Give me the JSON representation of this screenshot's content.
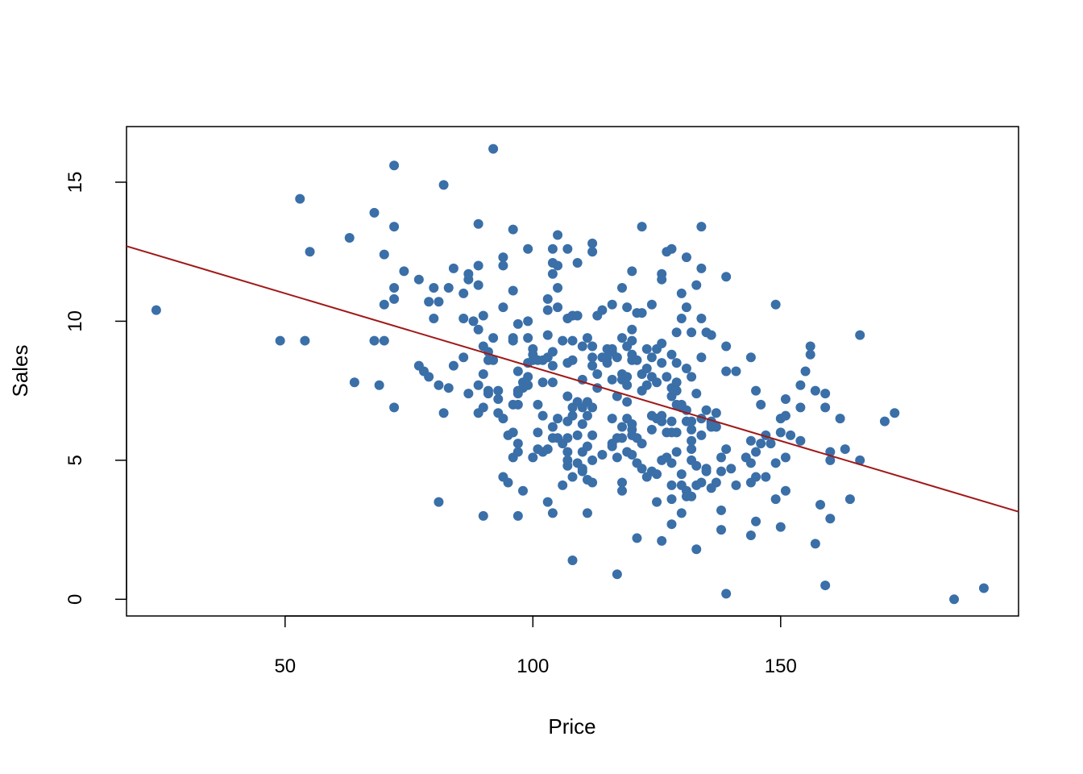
{
  "chart_data": {
    "type": "scatter",
    "title": "",
    "xlabel": "Price",
    "ylabel": "Sales",
    "xlim": [
      18,
      198
    ],
    "ylim": [
      -0.6,
      17.0
    ],
    "xticks": [
      50,
      100,
      150
    ],
    "yticks": [
      0,
      5,
      10,
      15
    ],
    "grid": false,
    "point_color": "#3a6fa8",
    "regression_line": {
      "color": "#a01818",
      "start": {
        "x": 18,
        "y": 12.7
      },
      "end": {
        "x": 198,
        "y": 3.15
      }
    },
    "points": [
      [
        24,
        10.4
      ],
      [
        49,
        9.3
      ],
      [
        53,
        14.4
      ],
      [
        54,
        9.3
      ],
      [
        55,
        12.5
      ],
      [
        63,
        13.0
      ],
      [
        64,
        7.8
      ],
      [
        68,
        13.9
      ],
      [
        68,
        9.3
      ],
      [
        69,
        7.7
      ],
      [
        70,
        9.3
      ],
      [
        70,
        12.4
      ],
      [
        70,
        10.6
      ],
      [
        72,
        15.6
      ],
      [
        72,
        13.4
      ],
      [
        72,
        11.2
      ],
      [
        72,
        10.8
      ],
      [
        72,
        6.9
      ],
      [
        74,
        11.8
      ],
      [
        77,
        11.5
      ],
      [
        77,
        8.4
      ],
      [
        78,
        8.2
      ],
      [
        79,
        8.0
      ],
      [
        79,
        10.7
      ],
      [
        80,
        11.2
      ],
      [
        80,
        10.1
      ],
      [
        81,
        10.7
      ],
      [
        81,
        7.7
      ],
      [
        81,
        3.5
      ],
      [
        82,
        14.9
      ],
      [
        82,
        6.7
      ],
      [
        83,
        11.2
      ],
      [
        83,
        7.6
      ],
      [
        84,
        11.9
      ],
      [
        84,
        8.4
      ],
      [
        86,
        10.1
      ],
      [
        86,
        11.0
      ],
      [
        86,
        8.7
      ],
      [
        87,
        11.5
      ],
      [
        87,
        11.7
      ],
      [
        87,
        7.4
      ],
      [
        88,
        10.0
      ],
      [
        89,
        13.5
      ],
      [
        89,
        12.0
      ],
      [
        89,
        11.3
      ],
      [
        89,
        9.7
      ],
      [
        89,
        7.7
      ],
      [
        89,
        6.7
      ],
      [
        90,
        10.2
      ],
      [
        90,
        9.1
      ],
      [
        90,
        8.1
      ],
      [
        90,
        6.9
      ],
      [
        90,
        3.0
      ],
      [
        91,
        8.9
      ],
      [
        91,
        8.6
      ],
      [
        91,
        7.5
      ],
      [
        91,
        7.4
      ],
      [
        92,
        16.2
      ],
      [
        92,
        9.4
      ],
      [
        92,
        8.6
      ],
      [
        93,
        7.5
      ],
      [
        93,
        7.2
      ],
      [
        93,
        6.7
      ],
      [
        94,
        12.3
      ],
      [
        94,
        12.0
      ],
      [
        94,
        10.5
      ],
      [
        94,
        6.5
      ],
      [
        94,
        4.4
      ],
      [
        95,
        5.9
      ],
      [
        95,
        4.2
      ],
      [
        96,
        13.3
      ],
      [
        96,
        11.1
      ],
      [
        96,
        9.4
      ],
      [
        96,
        9.3
      ],
      [
        96,
        7.0
      ],
      [
        96,
        6.0
      ],
      [
        96,
        5.1
      ],
      [
        97,
        9.9
      ],
      [
        97,
        8.2
      ],
      [
        97,
        7.5
      ],
      [
        97,
        7.4
      ],
      [
        97,
        7.0
      ],
      [
        97,
        5.6
      ],
      [
        97,
        5.3
      ],
      [
        97,
        3.0
      ],
      [
        98,
        7.8
      ],
      [
        98,
        7.6
      ],
      [
        98,
        3.9
      ],
      [
        99,
        12.6
      ],
      [
        99,
        10.0
      ],
      [
        99,
        9.4
      ],
      [
        99,
        8.5
      ],
      [
        99,
        8.0
      ],
      [
        99,
        7.7
      ],
      [
        100,
        9.0
      ],
      [
        100,
        8.8
      ],
      [
        100,
        8.6
      ],
      [
        100,
        5.1
      ],
      [
        101,
        8.6
      ],
      [
        101,
        7.0
      ],
      [
        101,
        6.0
      ],
      [
        101,
        5.4
      ],
      [
        102,
        8.6
      ],
      [
        102,
        7.8
      ],
      [
        102,
        6.6
      ],
      [
        102,
        5.3
      ],
      [
        103,
        10.8
      ],
      [
        103,
        10.4
      ],
      [
        103,
        9.5
      ],
      [
        103,
        8.7
      ],
      [
        103,
        5.4
      ],
      [
        103,
        3.5
      ],
      [
        104,
        12.6
      ],
      [
        104,
        12.1
      ],
      [
        104,
        11.7
      ],
      [
        104,
        8.9
      ],
      [
        104,
        8.4
      ],
      [
        104,
        7.8
      ],
      [
        104,
        6.2
      ],
      [
        104,
        5.8
      ],
      [
        104,
        3.1
      ],
      [
        105,
        13.1
      ],
      [
        105,
        12.0
      ],
      [
        105,
        11.2
      ],
      [
        105,
        10.5
      ],
      [
        105,
        6.5
      ],
      [
        105,
        5.8
      ],
      [
        106,
        9.3
      ],
      [
        106,
        5.6
      ],
      [
        106,
        4.1
      ],
      [
        107,
        12.6
      ],
      [
        107,
        10.1
      ],
      [
        107,
        8.5
      ],
      [
        107,
        7.3
      ],
      [
        107,
        6.4
      ],
      [
        107,
        5.8
      ],
      [
        107,
        5.3
      ],
      [
        107,
        5.0
      ],
      [
        107,
        4.8
      ],
      [
        108,
        10.2
      ],
      [
        108,
        9.3
      ],
      [
        108,
        8.6
      ],
      [
        108,
        6.9
      ],
      [
        108,
        6.6
      ],
      [
        108,
        4.4
      ],
      [
        108,
        1.4
      ],
      [
        109,
        12.1
      ],
      [
        109,
        10.2
      ],
      [
        109,
        7.1
      ],
      [
        109,
        5.9
      ],
      [
        109,
        4.9
      ],
      [
        110,
        9.1
      ],
      [
        110,
        7.9
      ],
      [
        110,
        6.9
      ],
      [
        110,
        6.3
      ],
      [
        110,
        5.3
      ],
      [
        110,
        4.7
      ],
      [
        110,
        4.6
      ],
      [
        111,
        9.4
      ],
      [
        111,
        7.1
      ],
      [
        111,
        6.6
      ],
      [
        111,
        5.5
      ],
      [
        111,
        4.3
      ],
      [
        111,
        3.1
      ],
      [
        112,
        12.8
      ],
      [
        112,
        12.5
      ],
      [
        112,
        9.1
      ],
      [
        112,
        8.7
      ],
      [
        112,
        8.4
      ],
      [
        112,
        6.9
      ],
      [
        112,
        5.9
      ],
      [
        112,
        5.0
      ],
      [
        112,
        4.2
      ],
      [
        113,
        10.2
      ],
      [
        113,
        8.1
      ],
      [
        113,
        7.6
      ],
      [
        114,
        10.4
      ],
      [
        114,
        8.7
      ],
      [
        114,
        5.2
      ],
      [
        115,
        9.0
      ],
      [
        115,
        8.7
      ],
      [
        115,
        8.5
      ],
      [
        116,
        10.6
      ],
      [
        116,
        9.0
      ],
      [
        116,
        8.9
      ],
      [
        116,
        7.9
      ],
      [
        116,
        6.5
      ],
      [
        116,
        5.6
      ],
      [
        116,
        5.5
      ],
      [
        117,
        8.7
      ],
      [
        117,
        7.3
      ],
      [
        117,
        5.8
      ],
      [
        117,
        5.1
      ],
      [
        117,
        0.9
      ],
      [
        118,
        11.2
      ],
      [
        118,
        9.4
      ],
      [
        118,
        8.1
      ],
      [
        118,
        7.9
      ],
      [
        118,
        6.2
      ],
      [
        118,
        5.8
      ],
      [
        118,
        4.2
      ],
      [
        118,
        3.9
      ],
      [
        119,
        10.5
      ],
      [
        119,
        9.1
      ],
      [
        119,
        8.0
      ],
      [
        119,
        7.7
      ],
      [
        119,
        7.1
      ],
      [
        119,
        6.5
      ],
      [
        119,
        5.3
      ],
      [
        120,
        11.8
      ],
      [
        120,
        9.7
      ],
      [
        120,
        9.3
      ],
      [
        120,
        8.8
      ],
      [
        120,
        8.6
      ],
      [
        120,
        6.3
      ],
      [
        120,
        6.1
      ],
      [
        120,
        5.9
      ],
      [
        120,
        5.2
      ],
      [
        121,
        10.3
      ],
      [
        121,
        8.6
      ],
      [
        121,
        5.8
      ],
      [
        121,
        4.9
      ],
      [
        121,
        2.2
      ],
      [
        122,
        13.4
      ],
      [
        122,
        10.3
      ],
      [
        122,
        8.1
      ],
      [
        122,
        7.5
      ],
      [
        122,
        5.6
      ],
      [
        122,
        4.7
      ],
      [
        123,
        9.0
      ],
      [
        123,
        8.3
      ],
      [
        123,
        7.7
      ],
      [
        123,
        4.4
      ],
      [
        124,
        10.6
      ],
      [
        124,
        8.7
      ],
      [
        124,
        8.0
      ],
      [
        124,
        6.6
      ],
      [
        124,
        6.1
      ],
      [
        124,
        4.6
      ],
      [
        125,
        9.0
      ],
      [
        125,
        7.8
      ],
      [
        125,
        6.5
      ],
      [
        125,
        4.5
      ],
      [
        125,
        3.5
      ],
      [
        126,
        11.7
      ],
      [
        126,
        11.5
      ],
      [
        126,
        9.2
      ],
      [
        126,
        8.5
      ],
      [
        126,
        6.6
      ],
      [
        126,
        6.4
      ],
      [
        126,
        5.0
      ],
      [
        126,
        2.1
      ],
      [
        127,
        12.5
      ],
      [
        127,
        8.0
      ],
      [
        127,
        6.0
      ],
      [
        127,
        5.1
      ],
      [
        128,
        12.6
      ],
      [
        128,
        8.8
      ],
      [
        128,
        7.6
      ],
      [
        128,
        7.3
      ],
      [
        128,
        6.4
      ],
      [
        128,
        6.0
      ],
      [
        128,
        4.9
      ],
      [
        128,
        4.1
      ],
      [
        128,
        3.6
      ],
      [
        128,
        2.7
      ],
      [
        129,
        9.6
      ],
      [
        129,
        8.5
      ],
      [
        129,
        7.8
      ],
      [
        129,
        7.5
      ],
      [
        129,
        7.0
      ],
      [
        129,
        6.0
      ],
      [
        129,
        5.3
      ],
      [
        130,
        11.0
      ],
      [
        130,
        10.1
      ],
      [
        130,
        7.0
      ],
      [
        130,
        6.9
      ],
      [
        130,
        4.5
      ],
      [
        130,
        4.1
      ],
      [
        130,
        3.1
      ],
      [
        131,
        12.3
      ],
      [
        131,
        10.5
      ],
      [
        131,
        8.3
      ],
      [
        131,
        6.8
      ],
      [
        131,
        6.4
      ],
      [
        131,
        3.9
      ],
      [
        131,
        3.7
      ],
      [
        132,
        9.6
      ],
      [
        132,
        8.0
      ],
      [
        132,
        6.4
      ],
      [
        132,
        6.1
      ],
      [
        132,
        5.7
      ],
      [
        132,
        5.4
      ],
      [
        132,
        5.0
      ],
      [
        132,
        3.7
      ],
      [
        133,
        11.3
      ],
      [
        133,
        7.4
      ],
      [
        133,
        4.8
      ],
      [
        133,
        4.1
      ],
      [
        133,
        1.8
      ],
      [
        134,
        13.4
      ],
      [
        134,
        11.9
      ],
      [
        134,
        10.1
      ],
      [
        134,
        8.7
      ],
      [
        134,
        6.5
      ],
      [
        134,
        5.9
      ],
      [
        134,
        4.2
      ],
      [
        135,
        9.6
      ],
      [
        135,
        6.8
      ],
      [
        135,
        4.7
      ],
      [
        135,
        4.6
      ],
      [
        136,
        9.5
      ],
      [
        136,
        6.4
      ],
      [
        136,
        6.3
      ],
      [
        136,
        6.2
      ],
      [
        136,
        4.0
      ],
      [
        137,
        6.7
      ],
      [
        137,
        6.2
      ],
      [
        137,
        4.2
      ],
      [
        138,
        5.1
      ],
      [
        138,
        4.6
      ],
      [
        138,
        3.2
      ],
      [
        138,
        2.5
      ],
      [
        139,
        11.6
      ],
      [
        139,
        9.1
      ],
      [
        139,
        8.2
      ],
      [
        139,
        5.4
      ],
      [
        139,
        0.2
      ],
      [
        140,
        4.7
      ],
      [
        141,
        8.2
      ],
      [
        141,
        4.1
      ],
      [
        143,
        5.1
      ],
      [
        144,
        8.7
      ],
      [
        144,
        5.7
      ],
      [
        144,
        4.9
      ],
      [
        144,
        4.2
      ],
      [
        144,
        2.3
      ],
      [
        145,
        7.5
      ],
      [
        145,
        5.3
      ],
      [
        145,
        4.4
      ],
      [
        145,
        2.8
      ],
      [
        146,
        7.0
      ],
      [
        146,
        5.6
      ],
      [
        147,
        5.9
      ],
      [
        147,
        4.4
      ],
      [
        148,
        5.6
      ],
      [
        149,
        10.6
      ],
      [
        149,
        4.9
      ],
      [
        149,
        3.6
      ],
      [
        150,
        6.5
      ],
      [
        150,
        6.0
      ],
      [
        150,
        2.6
      ],
      [
        151,
        7.2
      ],
      [
        151,
        6.6
      ],
      [
        151,
        5.1
      ],
      [
        151,
        3.9
      ],
      [
        152,
        5.9
      ],
      [
        154,
        7.7
      ],
      [
        154,
        6.9
      ],
      [
        154,
        5.7
      ],
      [
        155,
        8.2
      ],
      [
        156,
        9.1
      ],
      [
        156,
        8.8
      ],
      [
        157,
        7.5
      ],
      [
        157,
        2.0
      ],
      [
        158,
        3.4
      ],
      [
        159,
        7.4
      ],
      [
        159,
        6.9
      ],
      [
        159,
        0.5
      ],
      [
        160,
        5.3
      ],
      [
        160,
        5.0
      ],
      [
        160,
        2.9
      ],
      [
        162,
        6.5
      ],
      [
        163,
        5.4
      ],
      [
        164,
        3.6
      ],
      [
        166,
        9.5
      ],
      [
        166,
        5.0
      ],
      [
        171,
        6.4
      ],
      [
        173,
        6.7
      ],
      [
        185,
        0.0
      ],
      [
        191,
        0.4
      ]
    ]
  }
}
